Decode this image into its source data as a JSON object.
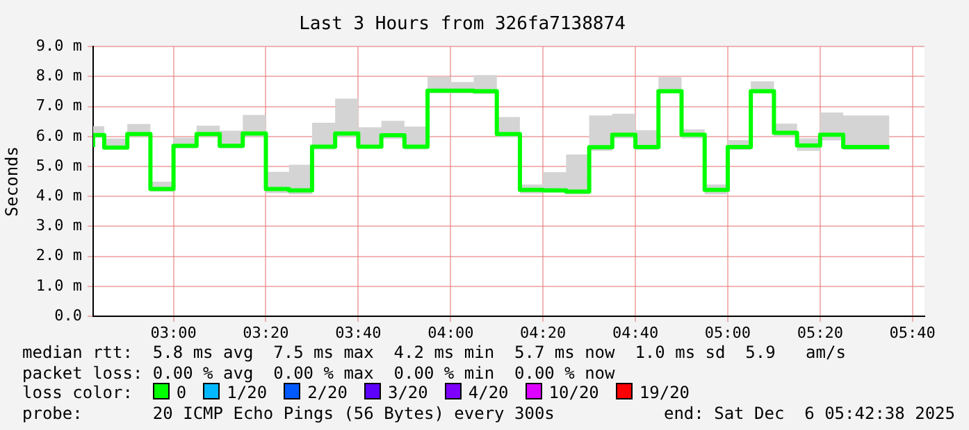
{
  "chart_data": {
    "type": "step",
    "title": "Last 3 Hours from 326fa7138874",
    "ylabel": "Seconds",
    "x": [
      2.71,
      2.75,
      2.8333,
      2.9167,
      3.0,
      3.0833,
      3.1667,
      3.25,
      3.3333,
      3.4167,
      3.5,
      3.5833,
      3.6667,
      3.75,
      3.8333,
      3.9167,
      4.0,
      4.0833,
      4.1667,
      4.25,
      4.3333,
      4.4167,
      4.5,
      4.5833,
      4.6667,
      4.75,
      4.8333,
      4.9167,
      5.0,
      5.0833,
      5.1667,
      5.25,
      5.3333,
      5.4167,
      5.5,
      5.5833
    ],
    "series": [
      {
        "name": "0",
        "color": "#00ff00",
        "values": [
          5.65,
          6.05,
          5.63,
          6.08,
          4.25,
          5.69,
          6.08,
          5.69,
          6.1,
          4.25,
          4.2,
          5.66,
          6.1,
          5.66,
          6.04,
          5.66,
          7.53,
          7.53,
          7.51,
          6.08,
          4.22,
          4.2,
          4.16,
          5.64,
          6.06,
          5.65,
          7.51,
          6.06,
          4.22,
          5.65,
          7.51,
          6.12,
          5.7,
          6.06,
          5.65,
          5.65
        ],
        "lower": [
          5.57,
          5.96,
          5.57,
          5.99,
          4.16,
          5.6,
          5.99,
          5.6,
          5.99,
          4.11,
          4.07,
          5.57,
          5.99,
          5.6,
          5.92,
          5.57,
          7.44,
          7.44,
          7.42,
          5.97,
          4.1,
          4.13,
          4.07,
          5.52,
          5.94,
          5.55,
          7.45,
          5.94,
          4.07,
          5.55,
          7.45,
          6.0,
          5.52,
          5.87,
          5.55,
          5.55
        ],
        "upper": [
          6.0,
          6.34,
          5.93,
          6.42,
          4.49,
          5.96,
          6.36,
          6.19,
          6.72,
          4.82,
          5.06,
          6.46,
          7.26,
          6.31,
          6.52,
          6.33,
          8.0,
          7.82,
          8.05,
          6.65,
          4.4,
          4.81,
          5.4,
          6.7,
          6.76,
          6.21,
          7.98,
          6.24,
          4.4,
          5.88,
          7.84,
          6.43,
          5.94,
          6.8,
          6.7,
          6.7
        ]
      },
      {
        "name": "1/20",
        "color": "#00b8ff",
        "values": [
          null,
          null,
          null,
          null,
          null,
          null,
          null,
          null,
          null,
          null,
          null,
          null,
          null,
          null,
          null,
          null,
          null,
          null,
          null,
          null,
          null,
          null,
          null,
          null,
          null,
          null,
          null,
          null,
          null,
          null,
          null,
          null,
          null,
          null,
          null,
          null
        ]
      },
      {
        "name": "2/20",
        "color": "#0059ff",
        "values": [
          null,
          null,
          null,
          null,
          null,
          null,
          null,
          null,
          null,
          null,
          null,
          null,
          null,
          null,
          null,
          null,
          null,
          null,
          null,
          null,
          null,
          null,
          null,
          null,
          null,
          null,
          null,
          null,
          null,
          null,
          null,
          null,
          null,
          null,
          null,
          null
        ]
      },
      {
        "name": "3/20",
        "color": "#5e00ff",
        "values": [
          null,
          null,
          null,
          null,
          null,
          null,
          null,
          null,
          null,
          null,
          null,
          null,
          null,
          null,
          null,
          null,
          null,
          null,
          null,
          null,
          null,
          null,
          null,
          null,
          null,
          null,
          null,
          null,
          null,
          null,
          null,
          null,
          null,
          null,
          null,
          null
        ]
      },
      {
        "name": "4/20",
        "color": "#7e00ff",
        "values": [
          null,
          null,
          null,
          null,
          null,
          null,
          null,
          null,
          null,
          null,
          null,
          null,
          null,
          null,
          null,
          null,
          null,
          null,
          null,
          null,
          null,
          null,
          null,
          null,
          null,
          null,
          null,
          null,
          null,
          null,
          null,
          null,
          null,
          null,
          null,
          null
        ]
      },
      {
        "name": "10/20",
        "color": "#dd00ff",
        "values": [
          null,
          null,
          null,
          null,
          null,
          null,
          null,
          null,
          null,
          null,
          null,
          null,
          null,
          null,
          null,
          null,
          null,
          null,
          null,
          null,
          null,
          null,
          null,
          null,
          null,
          null,
          null,
          null,
          null,
          null,
          null,
          null,
          null,
          null,
          null,
          null
        ]
      },
      {
        "name": "19/20",
        "color": "#ff0000",
        "values": [
          null,
          null,
          null,
          null,
          null,
          null,
          null,
          null,
          null,
          null,
          null,
          null,
          null,
          null,
          null,
          null,
          null,
          null,
          null,
          null,
          null,
          null,
          null,
          null,
          null,
          null,
          null,
          null,
          null,
          null,
          null,
          null,
          null,
          null,
          null,
          null
        ]
      }
    ],
    "xlim": [
      2.71,
      5.71
    ],
    "xticks": [
      {
        "value": 3,
        "label": "03:00"
      },
      {
        "value": 3.3333,
        "label": "03:20"
      },
      {
        "value": 3.6667,
        "label": "03:40"
      },
      {
        "value": 4,
        "label": "04:00"
      },
      {
        "value": 4.3333,
        "label": "04:20"
      },
      {
        "value": 4.6667,
        "label": "04:40"
      },
      {
        "value": 5,
        "label": "05:00"
      },
      {
        "value": 5.3333,
        "label": "05:20"
      },
      {
        "value": 5.6667,
        "label": "05:40"
      }
    ],
    "ylim": [
      0,
      9
    ],
    "yticks": [
      {
        "value": 0,
        "label": "0.0"
      },
      {
        "value": 1,
        "label": "1.0 m"
      },
      {
        "value": 2,
        "label": "2.0 m"
      },
      {
        "value": 3,
        "label": "3.0 m"
      },
      {
        "value": 4,
        "label": "4.0 m"
      },
      {
        "value": 5,
        "label": "5.0 m"
      },
      {
        "value": 6,
        "label": "6.0 m"
      },
      {
        "value": 7,
        "label": "7.0 m"
      },
      {
        "value": 8,
        "label": "8.0 m"
      },
      {
        "value": 9,
        "label": "9.0 m"
      }
    ],
    "grid": true,
    "legend": "bottom",
    "legend_title": "loss color:",
    "marker": "none",
    "line_style": "solid",
    "annotations": [
      "median rtt:  5.8 ms avg  7.5 ms max  4.2 ms min  5.7 ms now  1.0 ms sd  5.9   am/s",
      "packet loss: 0.00 % avg  0.00 % max  0.00 % min  0.00 % now",
      "probe:       20 ICMP Echo Pings (56 Bytes) every 300s",
      "end: Sat Dec  6 05:42:38 2025"
    ]
  }
}
